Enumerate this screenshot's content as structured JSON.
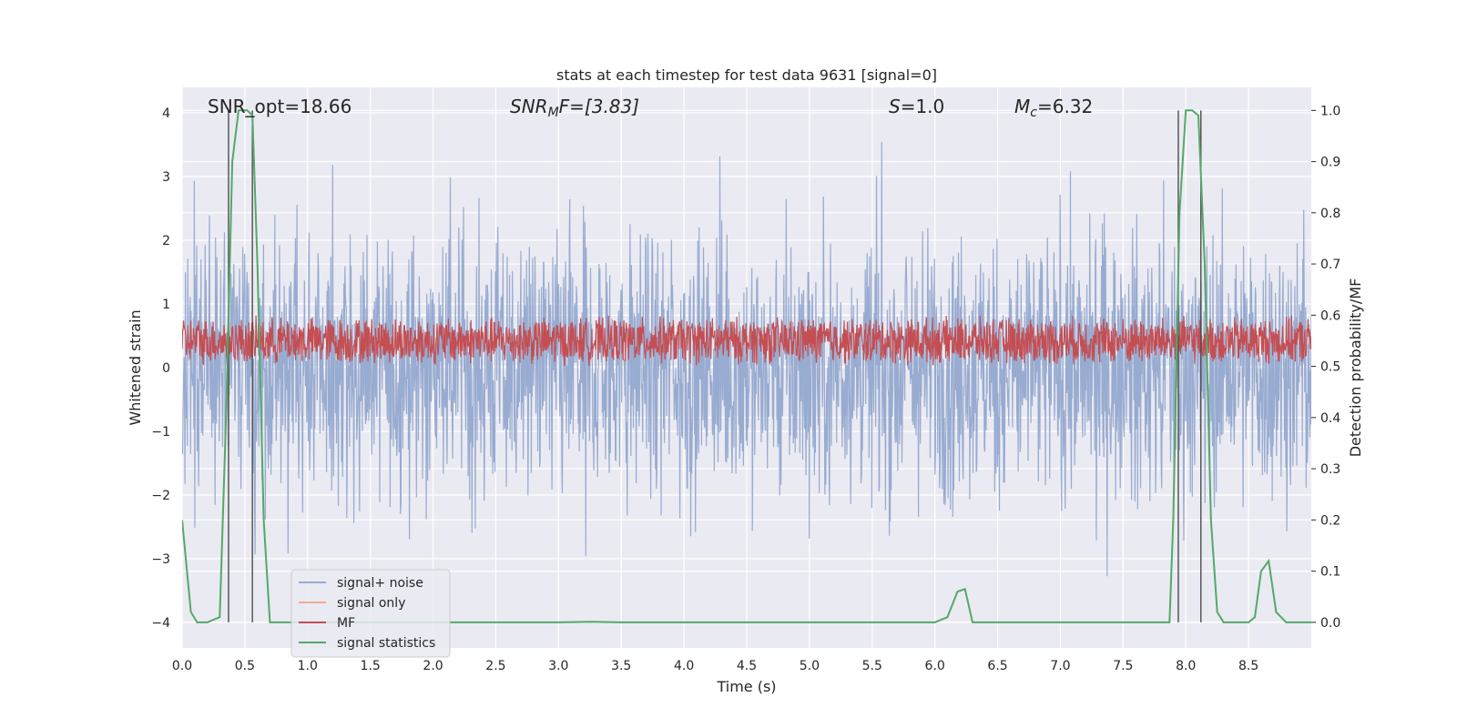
{
  "chart_data": {
    "type": "line",
    "title": "stats at each timestep for test data 9631 [signal=0]",
    "xlabel": "Time (s)",
    "ylabel": "Whitened strain",
    "ylabel_right": "Detection probability/MF",
    "xlim": [
      0,
      9.0
    ],
    "ylim": [
      -4.4,
      4.4
    ],
    "ylim_right": [
      -0.05,
      1.045
    ],
    "x_ticks": [
      0.0,
      0.5,
      1.0,
      1.5,
      2.0,
      2.5,
      3.0,
      3.5,
      4.0,
      4.5,
      5.0,
      5.5,
      6.0,
      6.5,
      7.0,
      7.5,
      8.0,
      8.5
    ],
    "x_tick_labels": [
      "0.0",
      "0.5",
      "1.0",
      "1.5",
      "2.0",
      "2.5",
      "3.0",
      "3.5",
      "4.0",
      "4.5",
      "5.0",
      "5.5",
      "6.0",
      "6.5",
      "7.0",
      "7.5",
      "8.0",
      "8.5"
    ],
    "y_ticks": [
      4,
      3,
      2,
      1,
      0,
      -1,
      -2,
      -3,
      -4
    ],
    "y_tick_labels": [
      "4",
      "3",
      "2",
      "1",
      "0",
      "−1",
      "−2",
      "−3",
      "−4"
    ],
    "y_right_ticks": [
      1.0,
      0.9,
      0.8,
      0.7,
      0.6,
      0.5,
      0.4,
      0.3,
      0.2,
      0.1,
      0.0
    ],
    "y_right_tick_labels": [
      "1.0",
      "0.9",
      "0.8",
      "0.7",
      "0.6",
      "0.5",
      "0.4",
      "0.3",
      "0.2",
      "0.1",
      "0.0"
    ],
    "grid": true,
    "legend_position": "lower-left",
    "annotations": {
      "snr_opt": "SNR_opt=18.66",
      "snr_mf_sym": "SNR",
      "snr_mf_sub": "M",
      "snr_mf_rest": "F=[3.83]",
      "s_sym": "S",
      "s_rest": "=1.0",
      "mc_sym": "M",
      "mc_sub": "c",
      "mc_rest": "=6.32"
    },
    "vertical_markers": [
      0.37,
      0.56,
      7.94,
      8.12
    ],
    "series": [
      {
        "name": "signal+ noise",
        "color": "#98abd0",
        "kind": "noise",
        "amplitude_range": [
          -3.5,
          3.9
        ]
      },
      {
        "name": "signal only",
        "color": "#eeac94",
        "kind": "flat",
        "values": []
      },
      {
        "name": "MF",
        "color": "#c44e52",
        "kind": "mf",
        "range_right_axis": [
          0.5,
          0.6
        ]
      },
      {
        "name": "signal statistics",
        "color": "#55a868",
        "kind": "line",
        "x": [
          0.0,
          0.07,
          0.12,
          0.2,
          0.3,
          0.35,
          0.4,
          0.45,
          0.52,
          0.56,
          0.6,
          0.65,
          0.7,
          1.0,
          2.0,
          3.0,
          3.25,
          3.5,
          4.0,
          5.0,
          6.0,
          6.1,
          6.18,
          6.24,
          6.3,
          6.4,
          7.0,
          7.5,
          7.87,
          7.9,
          7.95,
          8.0,
          8.05,
          8.1,
          8.15,
          8.2,
          8.25,
          8.3,
          8.4,
          8.5,
          8.55,
          8.6,
          8.66,
          8.72,
          8.8,
          8.9,
          9.0
        ],
        "y": [
          0.2,
          0.02,
          0.0,
          0.0,
          0.01,
          0.4,
          0.9,
          1.0,
          1.0,
          0.99,
          0.7,
          0.2,
          0.0,
          0.0,
          0.0,
          0.0,
          0.001,
          0.0,
          0.0,
          0.0,
          0.0,
          0.01,
          0.06,
          0.065,
          0.0,
          0.0,
          0.0,
          0.0,
          0.0,
          0.2,
          0.8,
          1.0,
          1.0,
          0.99,
          0.7,
          0.2,
          0.02,
          0.0,
          0.0,
          0.0,
          0.01,
          0.1,
          0.12,
          0.02,
          0.0,
          0.0,
          0.0
        ]
      }
    ]
  }
}
